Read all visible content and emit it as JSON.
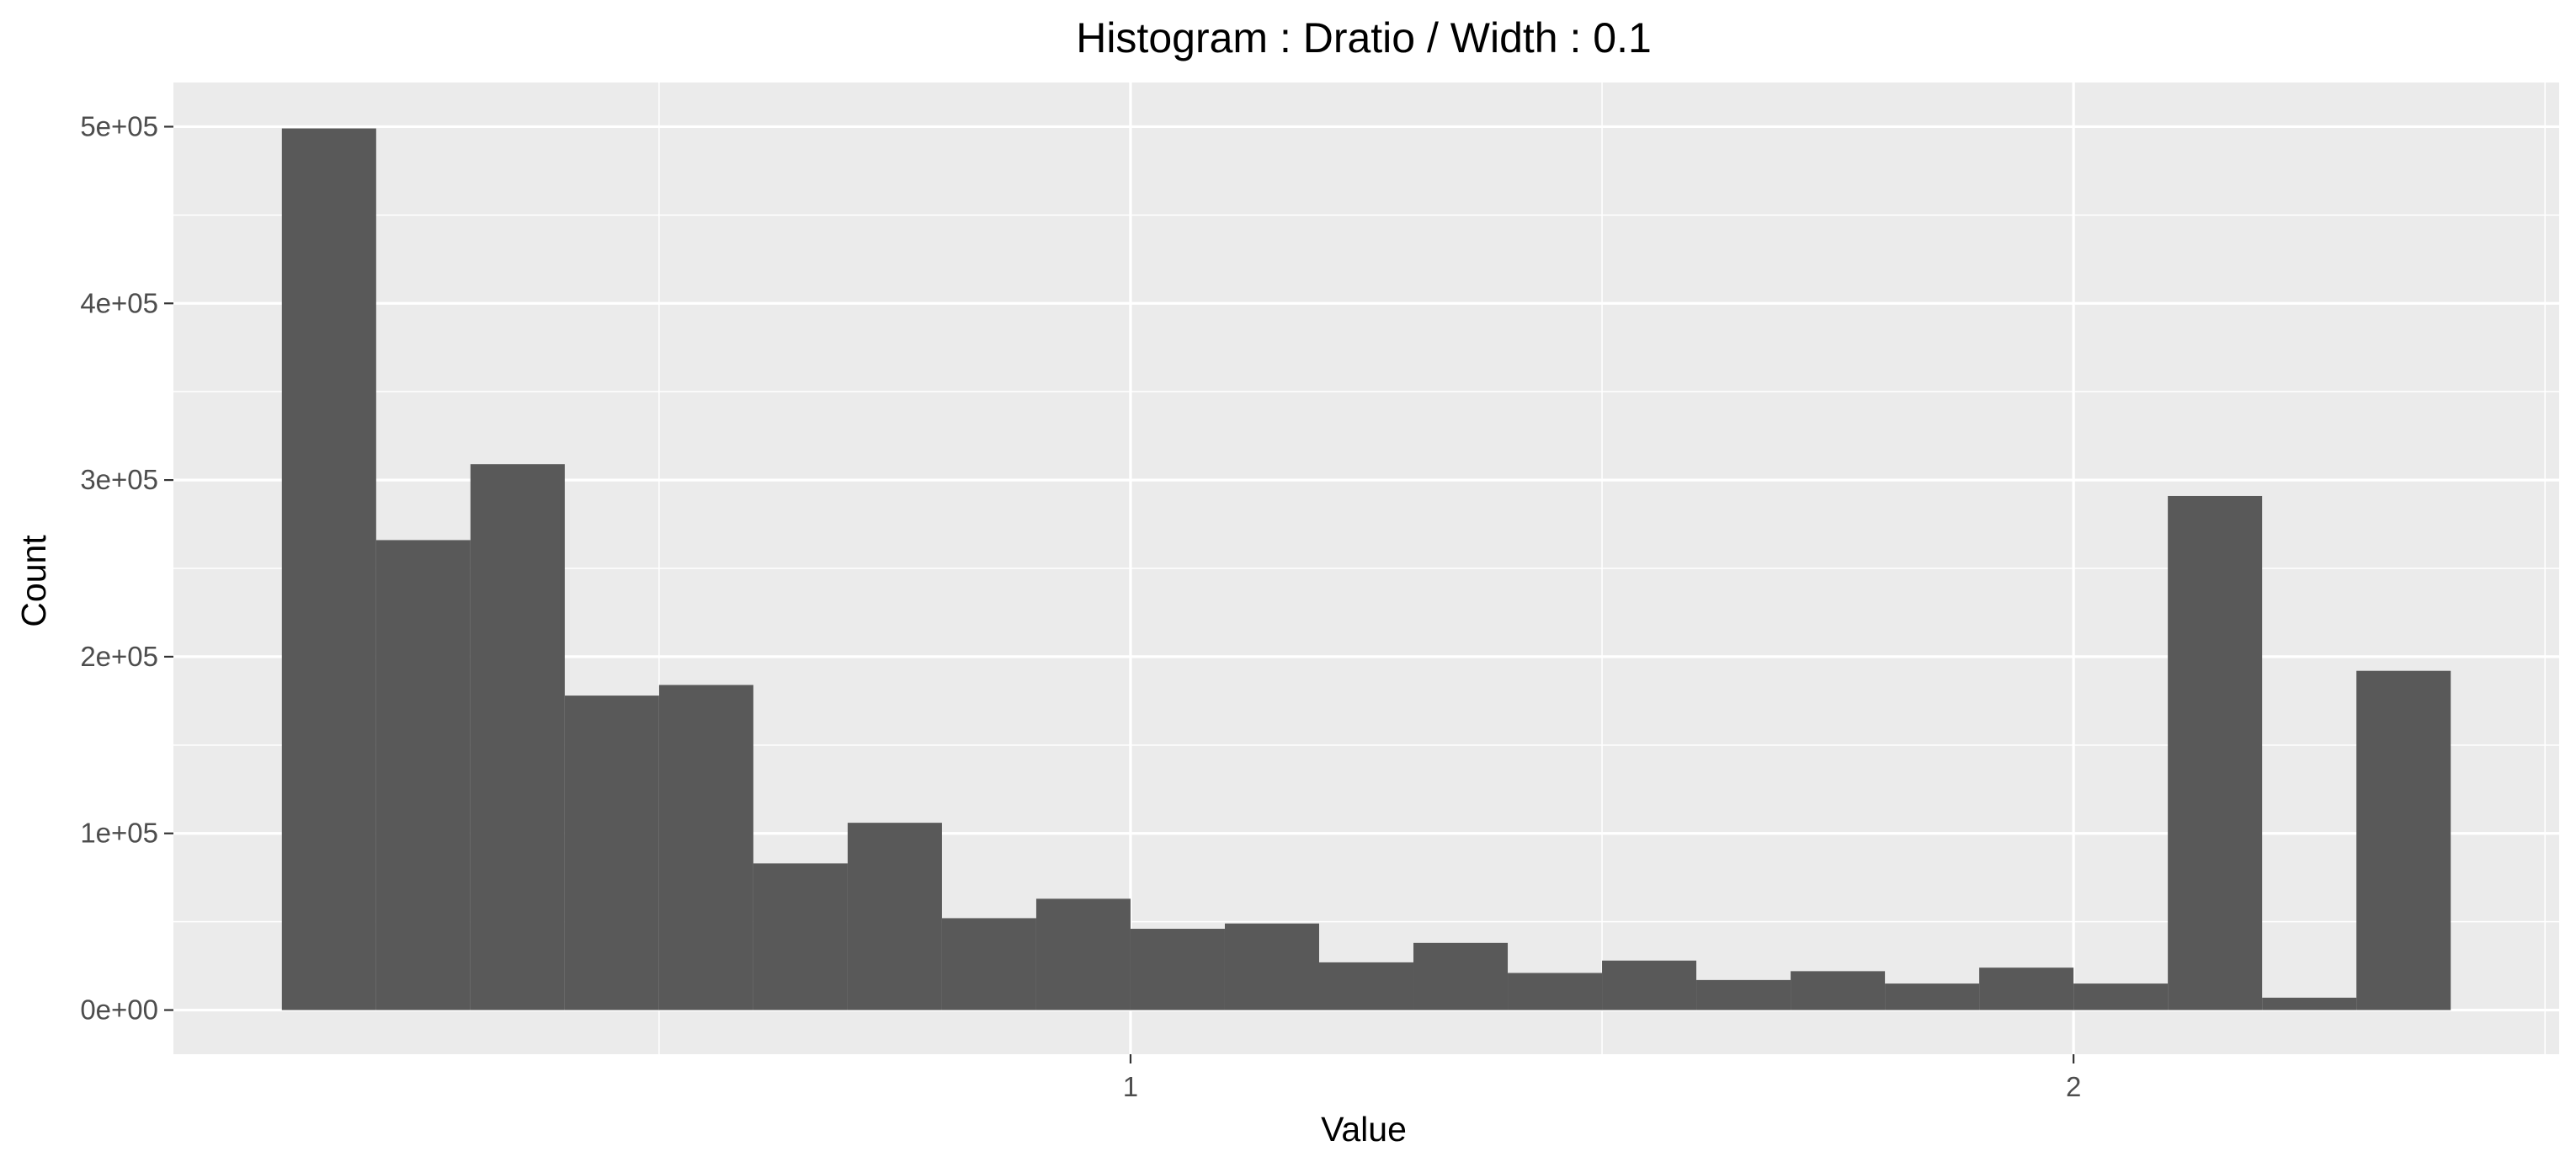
{
  "chart_data": {
    "type": "bar",
    "title": "Histogram : Dratio / Width : 0.1",
    "xlabel": "Value",
    "ylabel": "Count",
    "bin_width": 0.1,
    "bins": [
      {
        "x_start": 0.1,
        "x_end": 0.2,
        "count": 499000
      },
      {
        "x_start": 0.2,
        "x_end": 0.3,
        "count": 266000
      },
      {
        "x_start": 0.3,
        "x_end": 0.4,
        "count": 309000
      },
      {
        "x_start": 0.4,
        "x_end": 0.5,
        "count": 178000
      },
      {
        "x_start": 0.5,
        "x_end": 0.6,
        "count": 184000
      },
      {
        "x_start": 0.6,
        "x_end": 0.7,
        "count": 83000
      },
      {
        "x_start": 0.7,
        "x_end": 0.8,
        "count": 106000
      },
      {
        "x_start": 0.8,
        "x_end": 0.9,
        "count": 52000
      },
      {
        "x_start": 0.9,
        "x_end": 1.0,
        "count": 63000
      },
      {
        "x_start": 1.0,
        "x_end": 1.1,
        "count": 46000
      },
      {
        "x_start": 1.1,
        "x_end": 1.2,
        "count": 49000
      },
      {
        "x_start": 1.2,
        "x_end": 1.3,
        "count": 27000
      },
      {
        "x_start": 1.3,
        "x_end": 1.4,
        "count": 38000
      },
      {
        "x_start": 1.4,
        "x_end": 1.5,
        "count": 21000
      },
      {
        "x_start": 1.5,
        "x_end": 1.6,
        "count": 28000
      },
      {
        "x_start": 1.6,
        "x_end": 1.7,
        "count": 17000
      },
      {
        "x_start": 1.7,
        "x_end": 1.8,
        "count": 22000
      },
      {
        "x_start": 1.8,
        "x_end": 1.9,
        "count": 15000
      },
      {
        "x_start": 1.9,
        "x_end": 2.0,
        "count": 24000
      },
      {
        "x_start": 2.0,
        "x_end": 2.1,
        "count": 15000
      },
      {
        "x_start": 2.1,
        "x_end": 2.2,
        "count": 291000
      },
      {
        "x_start": 2.2,
        "x_end": 2.3,
        "count": 7000
      },
      {
        "x_start": 2.3,
        "x_end": 2.4,
        "count": 192000
      }
    ],
    "xlim": [
      -0.015,
      2.515
    ],
    "ylim": [
      -25000,
      525000
    ],
    "x_ticks": [
      {
        "value": 1,
        "label": "1"
      },
      {
        "value": 2,
        "label": "2"
      }
    ],
    "x_minor_grid": [
      0.5,
      1.5,
      2.5
    ],
    "y_ticks": [
      {
        "value": 0,
        "label": "0e+00"
      },
      {
        "value": 100000,
        "label": "1e+05"
      },
      {
        "value": 200000,
        "label": "2e+05"
      },
      {
        "value": 300000,
        "label": "3e+05"
      },
      {
        "value": 400000,
        "label": "4e+05"
      },
      {
        "value": 500000,
        "label": "5e+05"
      }
    ],
    "y_minor_grid": [
      50000,
      150000,
      250000,
      350000,
      450000
    ],
    "grid": true,
    "legend": "none",
    "colors": {
      "bar": "#595959",
      "panel": "#ebebeb",
      "grid": "#ffffff",
      "tick_label": "#4d4d4d",
      "tick_mark": "#333333"
    }
  }
}
